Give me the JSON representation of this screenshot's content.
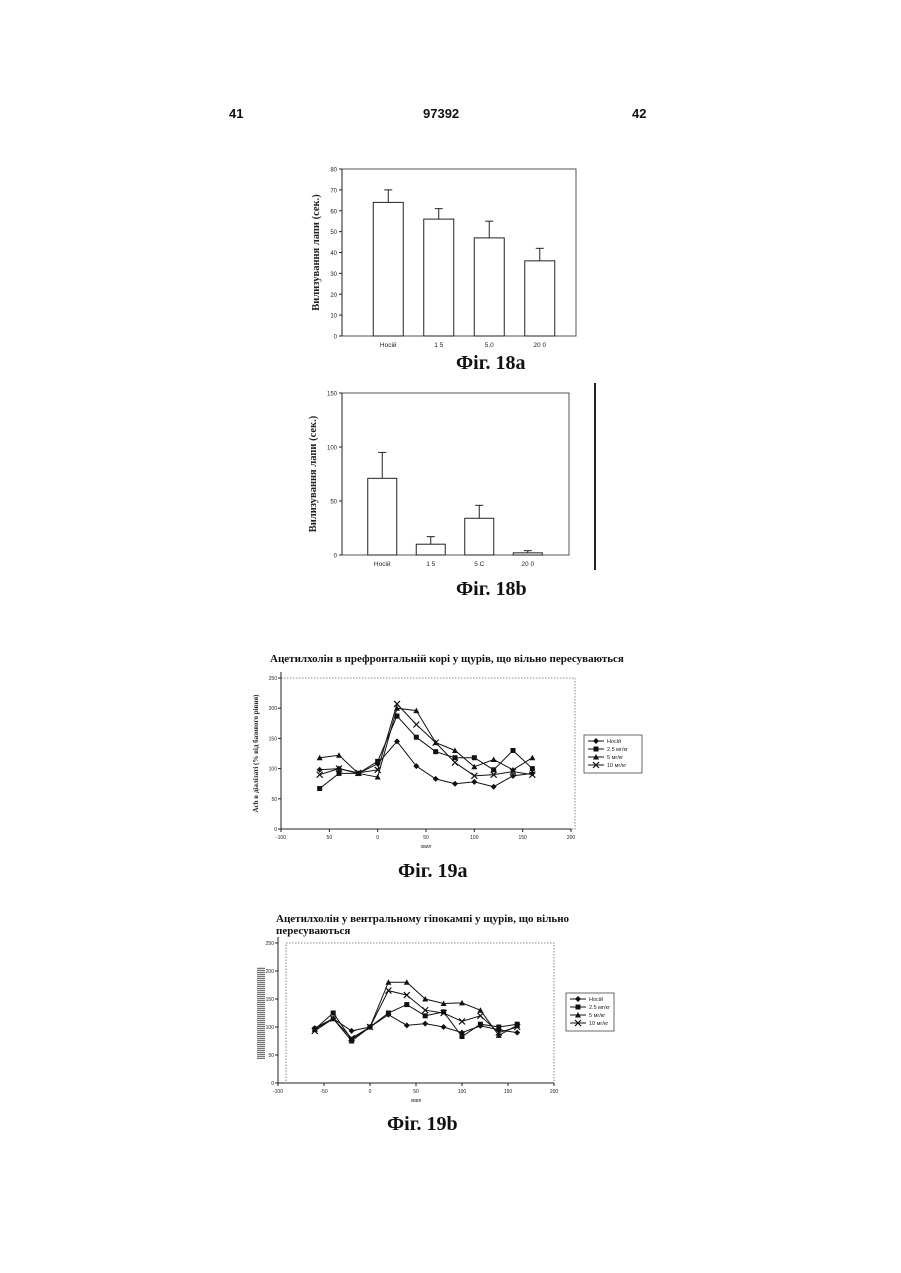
{
  "header": {
    "page_left": "41",
    "patent_number": "97392",
    "page_right": "42"
  },
  "figures": {
    "fig18a": {
      "caption": "Фіг. 18a"
    },
    "fig18b": {
      "caption": "Фіг. 18b"
    },
    "fig19a": {
      "caption": "Фіг. 19a",
      "title": "Ацетилхолін в префронтальній корі у щурів, що вільно пересуваються"
    },
    "fig19b": {
      "caption": "Фіг. 19b",
      "title_line1": "Ацетилхолін у вентральному гіпокампі у щурів, що вільно",
      "title_line2": "пересуваються"
    }
  },
  "chart_data": [
    {
      "id": "fig18a",
      "type": "bar",
      "categories": [
        "Носій",
        "1.5",
        "5.0",
        "20.0"
      ],
      "category_labels": [
        "Носій",
        "1 5",
        "5,0",
        "20 0"
      ],
      "values": [
        64,
        56,
        47,
        36
      ],
      "errors": [
        6,
        5,
        8,
        6
      ],
      "ylabel": "Вилизування лапи (сек.)",
      "xlabel": "",
      "ylim": [
        0,
        80
      ],
      "yticks": [
        0,
        10,
        20,
        30,
        40,
        50,
        60,
        70,
        80
      ],
      "ytick_labels": [
        "0",
        "10",
        "20",
        "30",
        "40",
        "50",
        "60",
        "70",
        "80"
      ],
      "grid": false
    },
    {
      "id": "fig18b",
      "type": "bar",
      "categories": [
        "Носій",
        "1.5",
        "5.0",
        "20.0"
      ],
      "category_labels": [
        "Носій",
        "1 5",
        "5 С",
        "20 0"
      ],
      "values": [
        71,
        10,
        34,
        2
      ],
      "errors": [
        24,
        7,
        12,
        2
      ],
      "ylabel": "Вилизування лапи (сек.)",
      "xlabel": "",
      "ylim": [
        0,
        150
      ],
      "yticks": [
        0,
        50,
        100,
        150
      ],
      "ytick_labels": [
        "0",
        "50",
        "100",
        "150"
      ],
      "grid": false
    },
    {
      "id": "fig19a",
      "type": "line",
      "title": "Ацетилхолін в префронтальній корі у щурів, що вільно пересуваються",
      "xlabel": "хвил",
      "ylabel": "Ach в діалізаті (% від базового рівня)",
      "xlim": [
        -100,
        200
      ],
      "ylim": [
        0,
        250
      ],
      "xticks": [
        -100,
        -50,
        0,
        50,
        100,
        150,
        200
      ],
      "xtick_labels": [
        "-100",
        "50",
        "0",
        "50",
        "100",
        "150",
        "200"
      ],
      "yticks": [
        0,
        50,
        100,
        150,
        200,
        250
      ],
      "ytick_labels": [
        "0",
        "50",
        "100",
        "150",
        "200",
        "250"
      ],
      "legend_position": "right",
      "x": [
        -60,
        -40,
        -20,
        0,
        20,
        40,
        60,
        80,
        100,
        120,
        140,
        160
      ],
      "series": [
        {
          "name": "Носій",
          "marker": "diamond",
          "values": [
            98,
            100,
            92,
            108,
            145,
            104,
            83,
            75,
            78,
            70,
            88,
            92
          ]
        },
        {
          "name": "2.5 мг/кг",
          "marker": "square",
          "values": [
            67,
            92,
            92,
            112,
            187,
            152,
            128,
            118,
            118,
            98,
            130,
            100
          ]
        },
        {
          "name": "5 мг/кг",
          "marker": "triangle",
          "values": [
            118,
            122,
            92,
            86,
            200,
            196,
            143,
            130,
            103,
            115,
            98,
            118
          ]
        },
        {
          "name": "10 мг/кг",
          "marker": "x",
          "values": [
            90,
            100,
            93,
            98,
            207,
            173,
            143,
            110,
            88,
            90,
            95,
            90
          ]
        }
      ]
    },
    {
      "id": "fig19b",
      "type": "line",
      "title": "Ацетилхолін у вентральному гіпокампі у щурів, що вільно пересуваються",
      "xlabel": "хвил",
      "ylabel": "",
      "xlim": [
        -100,
        200
      ],
      "ylim": [
        0,
        250
      ],
      "xticks": [
        -100,
        -50,
        0,
        50,
        100,
        150,
        200
      ],
      "xtick_labels": [
        "-100",
        "-50",
        "0",
        "50",
        "100",
        "150",
        "200"
      ],
      "yticks": [
        0,
        50,
        100,
        150,
        200,
        250
      ],
      "ytick_labels": [
        "0",
        "50",
        "100",
        "150",
        "200",
        "250"
      ],
      "legend_position": "right",
      "x": [
        -60,
        -40,
        -20,
        0,
        20,
        40,
        60,
        80,
        100,
        120,
        140,
        160
      ],
      "series": [
        {
          "name": "Носій",
          "marker": "diamond",
          "values": [
            98,
            115,
            93,
            100,
            122,
            103,
            106,
            100,
            90,
            102,
            95,
            90
          ]
        },
        {
          "name": "2.5 мг/кг",
          "marker": "square",
          "values": [
            96,
            125,
            78,
            100,
            125,
            140,
            120,
            127,
            83,
            105,
            100,
            105
          ]
        },
        {
          "name": "5 мг/кг",
          "marker": "triangle",
          "values": [
            96,
            115,
            75,
            100,
            180,
            180,
            150,
            142,
            143,
            130,
            85,
            103
          ]
        },
        {
          "name": "10 мг/кг",
          "marker": "x",
          "values": [
            93,
            115,
            80,
            100,
            165,
            157,
            130,
            125,
            110,
            120,
            90,
            100
          ]
        }
      ]
    }
  ]
}
